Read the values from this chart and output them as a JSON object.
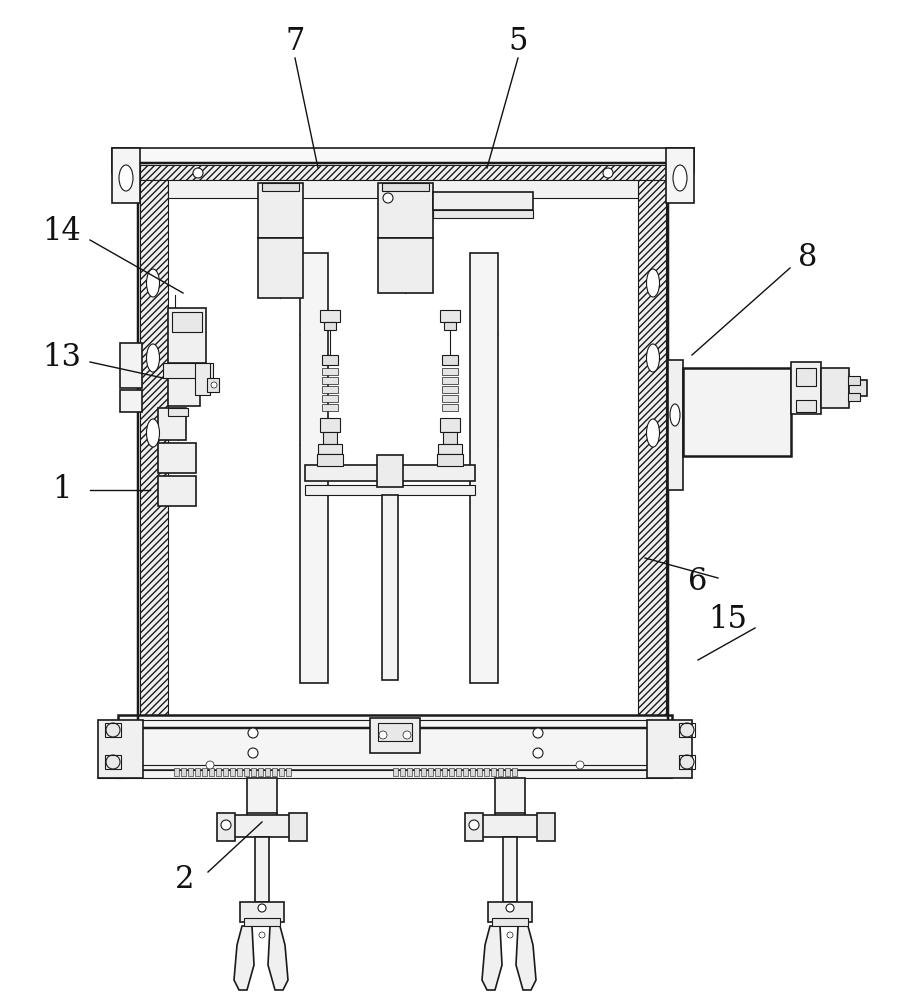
{
  "bg_color": "#ffffff",
  "line_color": "#1a1a1a",
  "label_color": "#111111",
  "figsize": [
    9.08,
    10.0
  ],
  "dpi": 100,
  "labels_info": [
    [
      "7",
      295,
      42,
      295,
      58,
      318,
      168
    ],
    [
      "5",
      518,
      42,
      518,
      58,
      487,
      168
    ],
    [
      "14",
      62,
      232,
      90,
      240,
      183,
      293
    ],
    [
      "8",
      808,
      258,
      790,
      268,
      692,
      355
    ],
    [
      "13",
      62,
      358,
      90,
      362,
      163,
      378
    ],
    [
      "1",
      62,
      490,
      90,
      490,
      150,
      490
    ],
    [
      "6",
      698,
      582,
      718,
      578,
      645,
      558
    ],
    [
      "15",
      728,
      620,
      755,
      628,
      698,
      660
    ],
    [
      "2",
      185,
      880,
      208,
      872,
      262,
      822
    ]
  ]
}
